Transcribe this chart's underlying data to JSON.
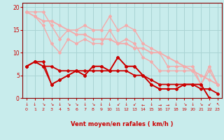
{
  "bg_color": "#c8ecec",
  "grid_color": "#aad4d4",
  "xlabel": "Vent moyen/en rafales ( km/h )",
  "xlim": [
    -0.5,
    23.5
  ],
  "ylim": [
    0,
    21
  ],
  "yticks": [
    0,
    5,
    10,
    15,
    20
  ],
  "xticks": [
    0,
    1,
    2,
    3,
    4,
    5,
    6,
    7,
    8,
    9,
    10,
    11,
    12,
    13,
    14,
    15,
    16,
    17,
    18,
    19,
    20,
    21,
    22,
    23
  ],
  "series": [
    {
      "x": [
        0,
        1,
        2,
        3,
        4,
        5,
        6,
        7,
        8,
        9,
        10,
        11,
        12,
        13,
        14,
        15,
        16,
        17,
        18,
        19,
        20,
        21,
        22,
        23
      ],
      "y": [
        19,
        19,
        19,
        16,
        13,
        15,
        15,
        16,
        15,
        15,
        18,
        15,
        16,
        15,
        12,
        11,
        10,
        7,
        7,
        7,
        7,
        3,
        7,
        3
      ],
      "color": "#f4aaaa",
      "lw": 1.0,
      "marker": "D",
      "ms": 2.0
    },
    {
      "x": [
        0,
        1,
        2,
        3,
        4,
        5,
        6,
        7,
        8,
        9,
        10,
        11,
        12,
        13,
        14,
        15,
        16,
        17,
        18,
        19,
        20,
        21,
        22,
        23
      ],
      "y": [
        19,
        18,
        17,
        17,
        16,
        15,
        14,
        14,
        13,
        13,
        13,
        12,
        12,
        11,
        11,
        10,
        10,
        9,
        8,
        7,
        6,
        5,
        4,
        3
      ],
      "color": "#f4aaaa",
      "lw": 1.3,
      "marker": "D",
      "ms": 2.0
    },
    {
      "x": [
        0,
        1,
        2,
        3,
        4,
        5,
        6,
        7,
        8,
        9,
        10,
        11,
        12,
        13,
        14,
        15,
        16,
        17,
        18,
        19,
        20,
        21,
        22,
        23
      ],
      "y": [
        19,
        18,
        16,
        12,
        10,
        13,
        12,
        13,
        12,
        12,
        15,
        12,
        13,
        12,
        9,
        8,
        6,
        6,
        6,
        6,
        6,
        3,
        6,
        3
      ],
      "color": "#f4aaaa",
      "lw": 1.0,
      "marker": "D",
      "ms": 2.0
    },
    {
      "x": [
        0,
        1,
        2,
        3,
        4,
        5,
        6,
        7,
        8,
        9,
        10,
        11,
        12,
        13,
        14,
        15,
        16,
        17,
        18,
        19,
        20,
        21,
        22,
        23
      ],
      "y": [
        7,
        8,
        8,
        3,
        4,
        5,
        6,
        5,
        7,
        7,
        6,
        9,
        7,
        7,
        5,
        3,
        2,
        2,
        2,
        3,
        3,
        3,
        0,
        null
      ],
      "color": "#cc0000",
      "lw": 1.3,
      "marker": "D",
      "ms": 2.0
    },
    {
      "x": [
        0,
        1,
        2,
        3,
        4,
        5,
        6,
        7,
        8,
        9,
        10,
        11,
        12,
        13,
        14,
        15,
        16,
        17,
        18,
        19,
        20,
        21,
        22,
        23
      ],
      "y": [
        7,
        8,
        7,
        7,
        6,
        6,
        6,
        6,
        6,
        6,
        6,
        6,
        6,
        5,
        5,
        4,
        3,
        3,
        3,
        3,
        3,
        2,
        2,
        1
      ],
      "color": "#cc0000",
      "lw": 1.3,
      "marker": "D",
      "ms": 2.0
    },
    {
      "x": [
        0,
        1,
        2,
        3,
        4,
        5,
        6,
        7,
        8,
        9,
        10,
        11,
        12,
        13,
        14,
        15,
        16,
        17,
        18,
        19,
        20,
        21,
        22,
        23
      ],
      "y": [
        7,
        8,
        7,
        3,
        4,
        5,
        6,
        5,
        7,
        7,
        6,
        9,
        7,
        7,
        5,
        3,
        2,
        2,
        2,
        3,
        3,
        3,
        0,
        null
      ],
      "color": "#cc0000",
      "lw": 1.0,
      "marker": "D",
      "ms": 2.0
    }
  ],
  "wind_arrows": [
    "↓",
    "↓",
    "↘",
    "↘",
    "↓",
    "↘",
    "↘",
    "↓",
    "↘",
    "↓",
    "↓",
    "↙",
    "↓",
    "↙",
    "←",
    "↓",
    "→",
    "→",
    "↓",
    "↘",
    "↓",
    "↘",
    "↙",
    "↖"
  ],
  "xlabel_color": "#cc0000",
  "tick_color": "#cc0000",
  "axes_color": "#880000"
}
